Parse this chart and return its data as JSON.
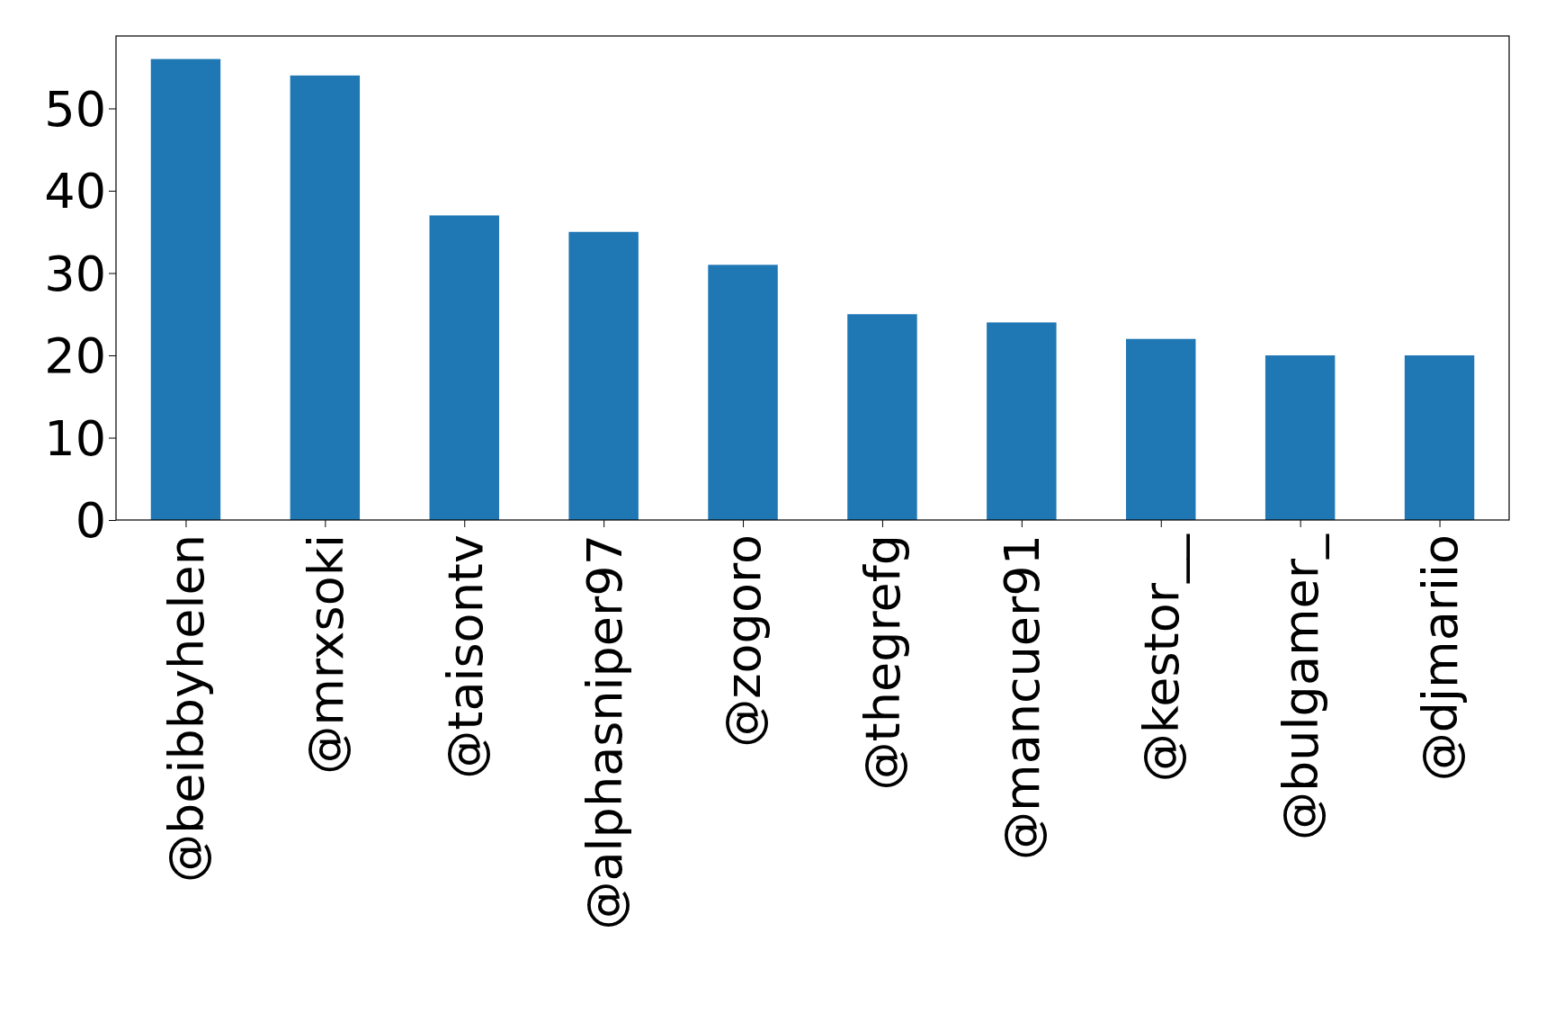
{
  "chart_data": {
    "type": "bar",
    "categories": [
      "@beibbyhelen",
      "@mrxsoki",
      "@taisontv",
      "@alphasniper97",
      "@zogoro",
      "@thegrefg",
      "@mancuer91",
      "@kestor__",
      "@bulgamer_",
      "@djmariio"
    ],
    "values": [
      56,
      54,
      37,
      35,
      31,
      25,
      24,
      22,
      20,
      20
    ],
    "color": "#1f77b4",
    "ylim": [
      0,
      58.8
    ],
    "yticks": [
      0,
      10,
      20,
      30,
      40,
      50
    ],
    "grid": false
  }
}
